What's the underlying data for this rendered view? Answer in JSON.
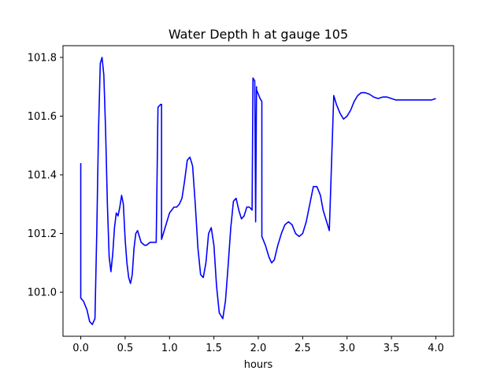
{
  "chart_data": {
    "type": "line",
    "title": "Water Depth h at gauge 105",
    "xlabel": "hours",
    "ylabel": "",
    "xlim": [
      -0.2,
      4.2
    ],
    "ylim": [
      100.85,
      101.84
    ],
    "xticks": [
      0.0,
      0.5,
      1.0,
      1.5,
      2.0,
      2.5,
      3.0,
      3.5,
      4.0
    ],
    "xtick_labels": [
      "0.0",
      "0.5",
      "1.0",
      "1.5",
      "2.0",
      "2.5",
      "3.0",
      "3.5",
      "4.0"
    ],
    "yticks": [
      101.0,
      101.2,
      101.4,
      101.6,
      101.8
    ],
    "ytick_labels": [
      "101.0",
      "101.2",
      "101.4",
      "101.6",
      "101.8"
    ],
    "grid": false,
    "line_color": "#0000ff",
    "series": [
      {
        "name": "",
        "x": [
          0.0,
          0.0,
          0.03,
          0.07,
          0.1,
          0.13,
          0.16,
          0.18,
          0.2,
          0.22,
          0.24,
          0.26,
          0.28,
          0.3,
          0.32,
          0.34,
          0.36,
          0.38,
          0.4,
          0.42,
          0.44,
          0.46,
          0.48,
          0.5,
          0.52,
          0.54,
          0.56,
          0.58,
          0.6,
          0.62,
          0.64,
          0.66,
          0.68,
          0.7,
          0.72,
          0.74,
          0.76,
          0.78,
          0.8,
          0.82,
          0.85,
          0.87,
          0.87,
          0.9,
          0.91,
          0.91,
          0.95,
          1.0,
          1.05,
          1.08,
          1.11,
          1.14,
          1.17,
          1.2,
          1.23,
          1.26,
          1.29,
          1.32,
          1.35,
          1.38,
          1.41,
          1.44,
          1.47,
          1.5,
          1.53,
          1.56,
          1.6,
          1.63,
          1.66,
          1.69,
          1.72,
          1.75,
          1.78,
          1.81,
          1.84,
          1.87,
          1.9,
          1.93,
          1.94,
          1.94,
          1.96,
          1.97,
          1.97,
          1.98,
          1.98,
          2.02,
          2.04,
          2.04,
          2.08,
          2.12,
          2.15,
          2.18,
          2.22,
          2.26,
          2.3,
          2.34,
          2.38,
          2.42,
          2.46,
          2.5,
          2.54,
          2.58,
          2.62,
          2.66,
          2.7,
          2.73,
          2.76,
          2.8,
          2.85,
          2.85,
          2.88,
          2.92,
          2.96,
          3.0,
          3.04,
          3.08,
          3.12,
          3.16,
          3.2,
          3.25,
          3.3,
          3.35,
          3.4,
          3.45,
          3.5,
          3.55,
          3.6,
          3.65,
          3.7,
          3.75,
          3.8,
          3.85,
          3.9,
          3.95,
          4.0
        ],
        "y": [
          101.44,
          100.98,
          100.97,
          100.94,
          100.9,
          100.89,
          100.91,
          101.2,
          101.55,
          101.78,
          101.8,
          101.74,
          101.55,
          101.3,
          101.12,
          101.07,
          101.13,
          101.22,
          101.27,
          101.26,
          101.29,
          101.33,
          101.3,
          101.18,
          101.1,
          101.05,
          101.03,
          101.06,
          101.15,
          101.2,
          101.21,
          101.19,
          101.17,
          101.165,
          101.16,
          101.16,
          101.165,
          101.17,
          101.17,
          101.17,
          101.17,
          101.63,
          101.63,
          101.64,
          101.64,
          101.18,
          101.22,
          101.27,
          101.29,
          101.29,
          101.3,
          101.32,
          101.38,
          101.45,
          101.46,
          101.43,
          101.3,
          101.15,
          101.06,
          101.05,
          101.1,
          101.2,
          101.22,
          101.16,
          101.02,
          100.93,
          100.91,
          100.97,
          101.09,
          101.22,
          101.31,
          101.32,
          101.28,
          101.25,
          101.26,
          101.29,
          101.29,
          101.28,
          101.73,
          101.73,
          101.72,
          101.25,
          101.24,
          101.7,
          101.69,
          101.66,
          101.65,
          101.19,
          101.16,
          101.12,
          101.1,
          101.11,
          101.16,
          101.2,
          101.23,
          101.24,
          101.23,
          101.2,
          101.19,
          101.2,
          101.24,
          101.3,
          101.36,
          101.36,
          101.33,
          101.28,
          101.25,
          101.21,
          101.67,
          101.67,
          101.64,
          101.61,
          101.59,
          101.6,
          101.62,
          101.65,
          101.67,
          101.68,
          101.68,
          101.675,
          101.665,
          101.66,
          101.665,
          101.665,
          101.66,
          101.655,
          101.655,
          101.655,
          101.655,
          101.655,
          101.655,
          101.655,
          101.655,
          101.655,
          101.66
        ]
      }
    ]
  }
}
